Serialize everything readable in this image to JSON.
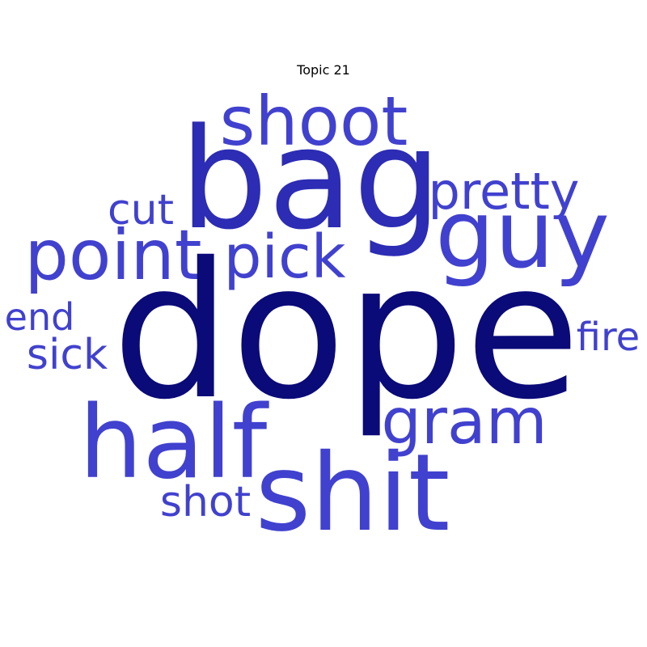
{
  "title": "Topic 21",
  "colors": {
    "background": "#ffffff",
    "title": "#000000",
    "dark_navy": "#0a0a78",
    "medium_blue": "#2c2cb4",
    "light_blue": "#4141cf"
  },
  "words": [
    {
      "key": "dope",
      "text": "dope",
      "color": "#0a0a78"
    },
    {
      "key": "bag",
      "text": "bag",
      "color": "#2c2cb4"
    },
    {
      "key": "shoot",
      "text": "shoot",
      "color": "#4141cf"
    },
    {
      "key": "guy",
      "text": "guy",
      "color": "#4141cf"
    },
    {
      "key": "pretty",
      "text": "pretty",
      "color": "#4141cf"
    },
    {
      "key": "cut",
      "text": "cut",
      "color": "#4141cf"
    },
    {
      "key": "point",
      "text": "point",
      "color": "#4141cf"
    },
    {
      "key": "pick",
      "text": "pick",
      "color": "#4141cf"
    },
    {
      "key": "end",
      "text": "end",
      "color": "#4141cf"
    },
    {
      "key": "sick",
      "text": "sick",
      "color": "#4141cf"
    },
    {
      "key": "fire",
      "text": "fire",
      "color": "#4141cf"
    },
    {
      "key": "half",
      "text": "half",
      "color": "#4141cf"
    },
    {
      "key": "gram",
      "text": "gram",
      "color": "#4141cf"
    },
    {
      "key": "shit",
      "text": "shit",
      "color": "#4141cf"
    },
    {
      "key": "shot",
      "text": "shot",
      "color": "#4141cf"
    }
  ]
}
